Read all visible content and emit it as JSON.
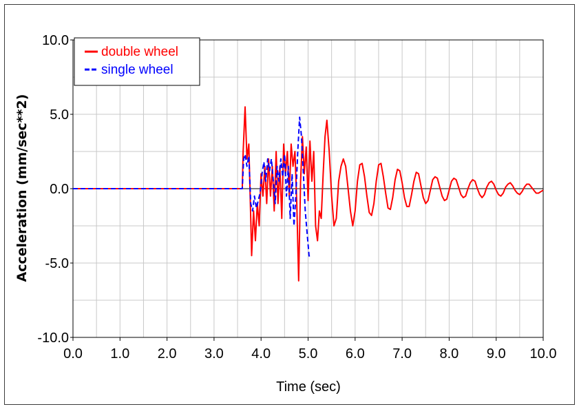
{
  "chart_data": {
    "type": "line",
    "title": "",
    "xlabel": "Time (sec)",
    "ylabel": "Acceleration (mm/sec**2)",
    "xlim": [
      0,
      10
    ],
    "ylim": [
      -10,
      10
    ],
    "grid": true,
    "legend_position": "top-left",
    "x_ticks": [
      "0.0",
      "1.0",
      "2.0",
      "3.0",
      "4.0",
      "5.0",
      "6.0",
      "7.0",
      "8.0",
      "9.0",
      "10.0"
    ],
    "y_ticks": [
      "10.0",
      "5.0",
      "0.0",
      "-5.0",
      "-10.0"
    ],
    "series": [
      {
        "name": "double wheel",
        "color": "#ff0000",
        "style": "solid",
        "x": [
          0,
          3.6,
          3.62,
          3.66,
          3.7,
          3.74,
          3.78,
          3.8,
          3.84,
          3.88,
          3.92,
          3.96,
          4.0,
          4.04,
          4.08,
          4.12,
          4.16,
          4.2,
          4.24,
          4.28,
          4.32,
          4.36,
          4.4,
          4.44,
          4.48,
          4.52,
          4.56,
          4.6,
          4.64,
          4.68,
          4.72,
          4.76,
          4.8,
          4.84,
          4.88,
          4.92,
          4.96,
          5.0,
          5.04,
          5.08,
          5.12,
          5.16,
          5.2,
          5.24,
          5.28,
          5.32,
          5.36,
          5.4,
          5.45,
          5.5,
          5.55,
          5.6,
          5.65,
          5.7,
          5.75,
          5.8,
          5.85,
          5.9,
          5.95,
          6.0,
          6.05,
          6.1,
          6.15,
          6.2,
          6.25,
          6.3,
          6.35,
          6.4,
          6.45,
          6.5,
          6.55,
          6.6,
          6.65,
          6.7,
          6.75,
          6.8,
          6.85,
          6.9,
          6.95,
          7.0,
          7.05,
          7.1,
          7.15,
          7.2,
          7.25,
          7.3,
          7.35,
          7.4,
          7.45,
          7.5,
          7.55,
          7.6,
          7.65,
          7.7,
          7.75,
          7.8,
          7.85,
          7.9,
          7.95,
          8.0,
          8.05,
          8.1,
          8.15,
          8.2,
          8.25,
          8.3,
          8.35,
          8.4,
          8.45,
          8.5,
          8.55,
          8.6,
          8.65,
          8.7,
          8.75,
          8.8,
          8.85,
          8.9,
          8.95,
          9.0,
          9.05,
          9.1,
          9.15,
          9.2,
          9.25,
          9.3,
          9.35,
          9.4,
          9.45,
          9.5,
          9.55,
          9.6,
          9.65,
          9.7,
          9.75,
          9.8,
          9.85,
          9.9,
          9.95,
          10.0
        ],
        "y": [
          0,
          0,
          2.5,
          5.5,
          2.0,
          3.0,
          -2.0,
          -4.5,
          -1.5,
          -3.5,
          -1.0,
          -2.5,
          1.0,
          -0.5,
          1.5,
          -1.0,
          2.0,
          -0.5,
          1.5,
          -1.5,
          2.5,
          -1.0,
          1.5,
          -2.0,
          3.0,
          1.0,
          2.5,
          -0.5,
          3.0,
          1.5,
          2.5,
          -1.0,
          -6.2,
          0.5,
          3.5,
          1.0,
          2.8,
          -0.8,
          3.2,
          0.5,
          2.5,
          -2.5,
          -3.5,
          -1.5,
          -2.0,
          1.0,
          3.5,
          4.6,
          2.5,
          -0.5,
          -2.5,
          -2.0,
          0.5,
          1.5,
          2.0,
          1.5,
          0.0,
          -1.5,
          -2.5,
          -1.5,
          0.5,
          1.6,
          1.7,
          0.8,
          -0.5,
          -1.6,
          -1.8,
          -1.0,
          0.5,
          1.6,
          1.7,
          0.8,
          -0.3,
          -1.3,
          -1.4,
          -0.6,
          0.6,
          1.3,
          1.2,
          0.4,
          -0.6,
          -1.2,
          -1.2,
          -0.4,
          0.5,
          1.1,
          1.0,
          0.2,
          -0.6,
          -1.0,
          -0.8,
          -0.1,
          0.6,
          0.8,
          0.7,
          0.1,
          -0.5,
          -0.8,
          -0.7,
          -0.1,
          0.5,
          0.7,
          0.6,
          0.1,
          -0.4,
          -0.6,
          -0.5,
          0.0,
          0.4,
          0.6,
          0.5,
          0.0,
          -0.4,
          -0.6,
          -0.4,
          0.1,
          0.4,
          0.5,
          0.3,
          -0.1,
          -0.4,
          -0.5,
          -0.3,
          0.1,
          0.3,
          0.4,
          0.2,
          -0.1,
          -0.3,
          -0.4,
          -0.2,
          0.1,
          0.3,
          0.3,
          0.1,
          -0.1,
          -0.3,
          -0.3,
          -0.2,
          -0.1
        ]
      },
      {
        "name": "single wheel",
        "color": "#0000ff",
        "style": "dashed",
        "x": [
          0,
          3.6,
          3.63,
          3.66,
          3.7,
          3.74,
          3.78,
          3.82,
          3.86,
          3.9,
          3.94,
          3.98,
          4.02,
          4.06,
          4.1,
          4.14,
          4.18,
          4.22,
          4.26,
          4.3,
          4.34,
          4.38,
          4.42,
          4.46,
          4.5,
          4.54,
          4.58,
          4.62,
          4.66,
          4.7,
          4.74,
          4.78,
          4.82,
          4.86,
          4.9,
          4.94,
          4.98,
          5.02,
          5.05
        ],
        "y": [
          0,
          0,
          2.0,
          2.3,
          1.5,
          2.2,
          -1.0,
          -1.5,
          -0.5,
          -1.3,
          -0.8,
          -0.3,
          1.0,
          1.8,
          0.5,
          2.0,
          1.2,
          2.0,
          0.5,
          -1.0,
          1.5,
          0.5,
          2.0,
          0.8,
          2.3,
          -0.5,
          1.5,
          -2.0,
          1.0,
          -2.5,
          -0.5,
          2.5,
          4.8,
          3.5,
          1.0,
          -1.5,
          -3.0,
          -4.5,
          -4.7
        ]
      }
    ]
  }
}
